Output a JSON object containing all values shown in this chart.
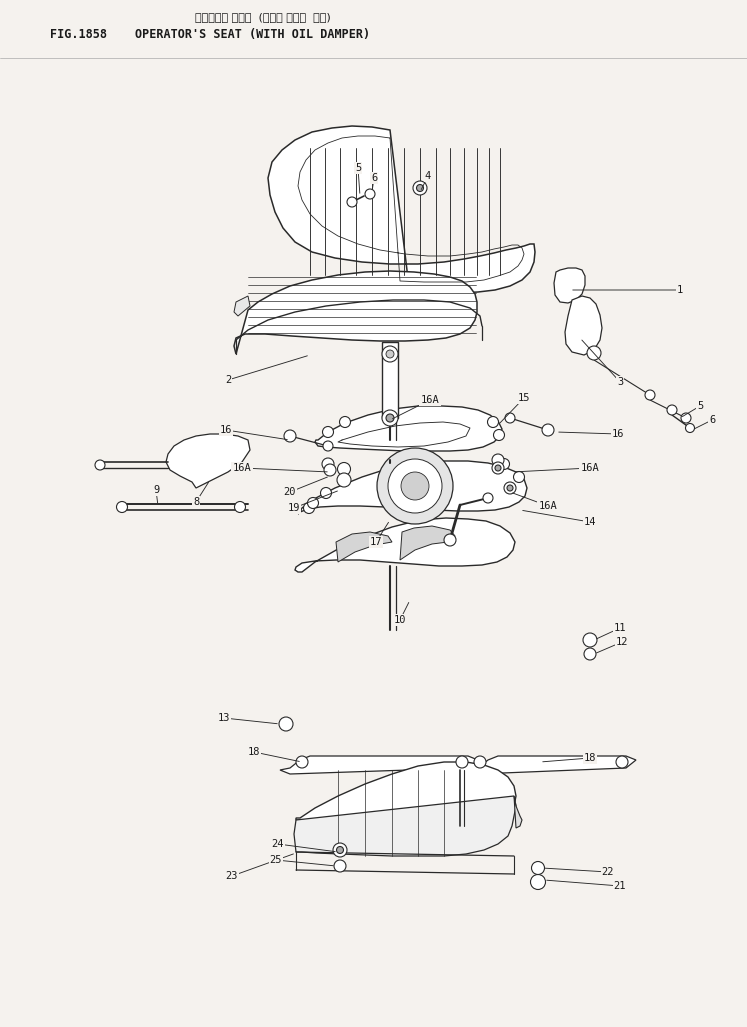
{
  "title_japanese": "オペレータ シート  (オイル ダンパ  サキ)",
  "title_english": "OPERATOR'S SEAT (WITH OIL DAMPER)",
  "fig_label": "FIG.1858",
  "bg_color": "#f5f2ee",
  "line_color": "#2a2a2a",
  "text_color": "#1a1a1a",
  "fig_width": 7.47,
  "fig_height": 10.27,
  "dpi": 100
}
